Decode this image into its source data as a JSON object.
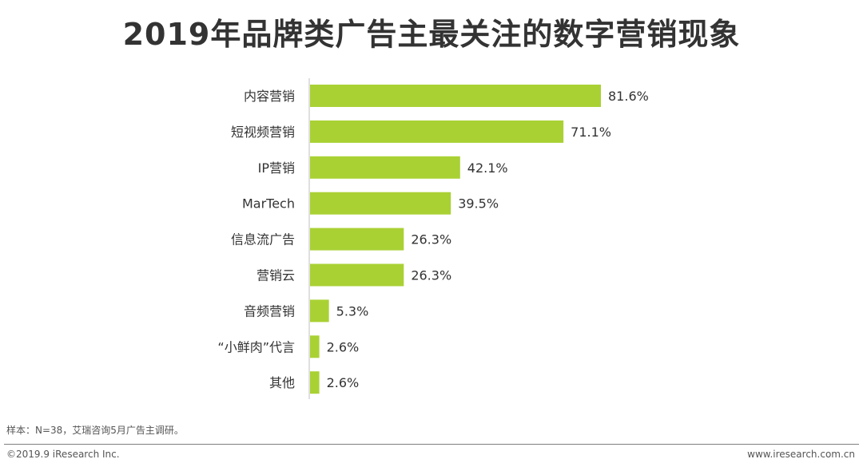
{
  "title": "2019年品牌类广告主最关注的数字营销现象",
  "chart_data": {
    "type": "bar",
    "orientation": "horizontal",
    "categories": [
      "内容营销",
      "短视频营销",
      "IP营销",
      "MarTech",
      "信息流广告",
      "营销云",
      "音频营销",
      "“小鲜肉”代言",
      "其他"
    ],
    "values": [
      81.6,
      71.1,
      42.1,
      39.5,
      26.3,
      26.3,
      5.3,
      2.6,
      2.6
    ],
    "value_labels": [
      "81.6%",
      "71.1%",
      "42.1%",
      "39.5%",
      "26.3%",
      "26.3%",
      "5.3%",
      "2.6%",
      "2.6%"
    ],
    "title": "2019年品牌类广告主最关注的数字营销现象",
    "xlabel": "",
    "ylabel": "",
    "xlim": [
      0,
      100
    ],
    "grid": false,
    "legend": "none",
    "bar_color": "#a9d134"
  },
  "footnote": "样本：N=38，艾瑞咨询5月广告主调研。",
  "copyright": "©2019.9 iResearch Inc.",
  "website": "www.iresearch.com.cn"
}
